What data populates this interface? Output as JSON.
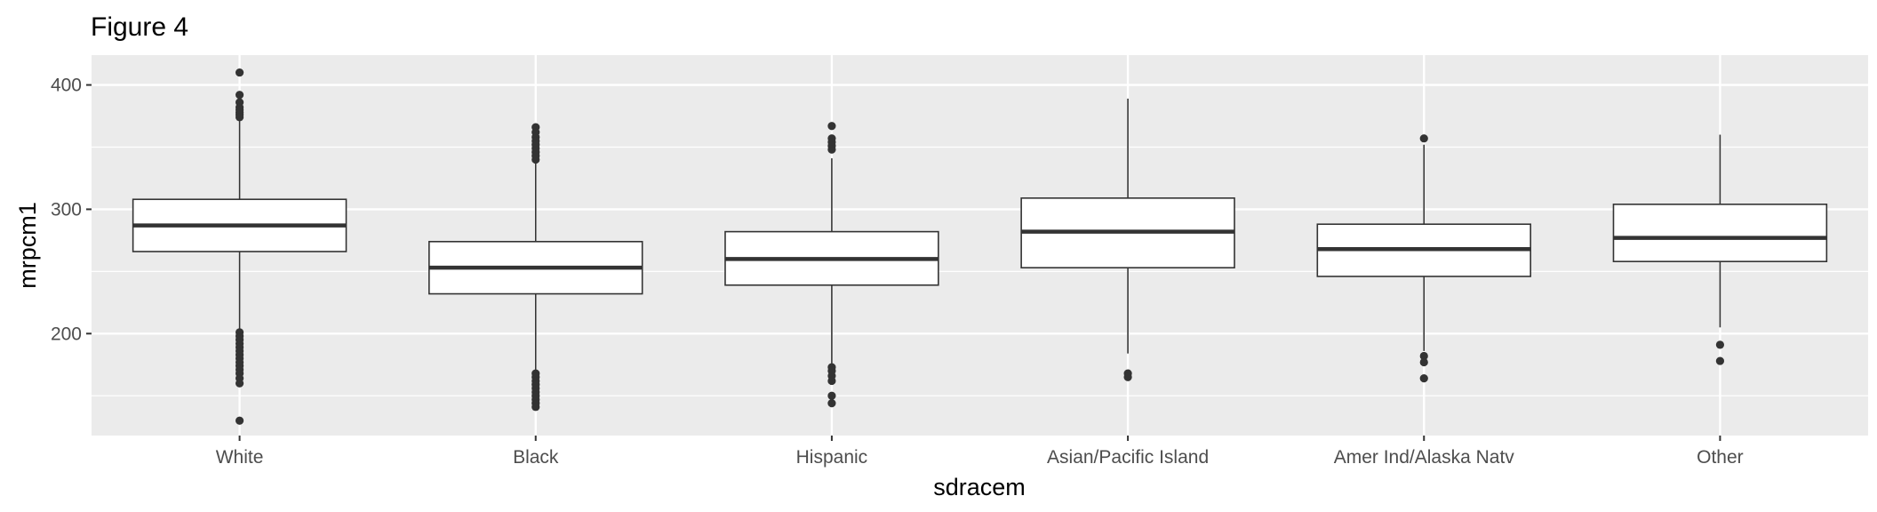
{
  "chart_data": {
    "type": "boxplot",
    "title": "Figure 4",
    "xlabel": "sdracem",
    "ylabel": "mrpcm1",
    "ylim": [
      118,
      424
    ],
    "yticks": [
      200,
      300,
      400
    ],
    "grid": true,
    "legend": "none",
    "colors": {
      "panel": "#EBEBEB",
      "grid": "#FFFFFF",
      "box_fill": "#FFFFFF",
      "box_line": "#333333",
      "tick_text": "#4D4D4D"
    },
    "categories": [
      "White",
      "Black",
      "Hispanic",
      "Asian/Pacific Island",
      "Amer Ind/Alaska Natv",
      "Other"
    ],
    "boxes": [
      {
        "category": "White",
        "whisker_low": 203,
        "q1": 266,
        "median": 287,
        "q3": 308,
        "whisker_high": 371,
        "outliers": [
          410,
          392,
          386,
          382,
          380,
          378,
          376,
          374,
          201,
          198,
          195,
          192,
          189,
          186,
          183,
          180,
          177,
          174,
          171,
          168,
          164,
          160,
          130
        ]
      },
      {
        "category": "Black",
        "whisker_low": 170,
        "q1": 232,
        "median": 253,
        "q3": 274,
        "whisker_high": 338,
        "outliers": [
          366,
          362,
          358,
          355,
          352,
          349,
          346,
          343,
          340,
          168,
          165,
          162,
          159,
          156,
          153,
          150,
          147,
          144,
          141
        ]
      },
      {
        "category": "Hispanic",
        "whisker_low": 176,
        "q1": 239,
        "median": 260,
        "q3": 282,
        "whisker_high": 341,
        "outliers": [
          367,
          357,
          354,
          351,
          348,
          173,
          170,
          166,
          162,
          150,
          144
        ]
      },
      {
        "category": "Asian/Pacific Island",
        "whisker_low": 184,
        "q1": 253,
        "median": 282,
        "q3": 309,
        "whisker_high": 389,
        "outliers": [
          168,
          165
        ]
      },
      {
        "category": "Amer Ind/Alaska Natv",
        "whisker_low": 186,
        "q1": 246,
        "median": 268,
        "q3": 288,
        "whisker_high": 352,
        "outliers": [
          357,
          182,
          177,
          164
        ]
      },
      {
        "category": "Other",
        "whisker_low": 205,
        "q1": 258,
        "median": 277,
        "q3": 304,
        "whisker_high": 360,
        "outliers": [
          191,
          178
        ]
      }
    ]
  }
}
